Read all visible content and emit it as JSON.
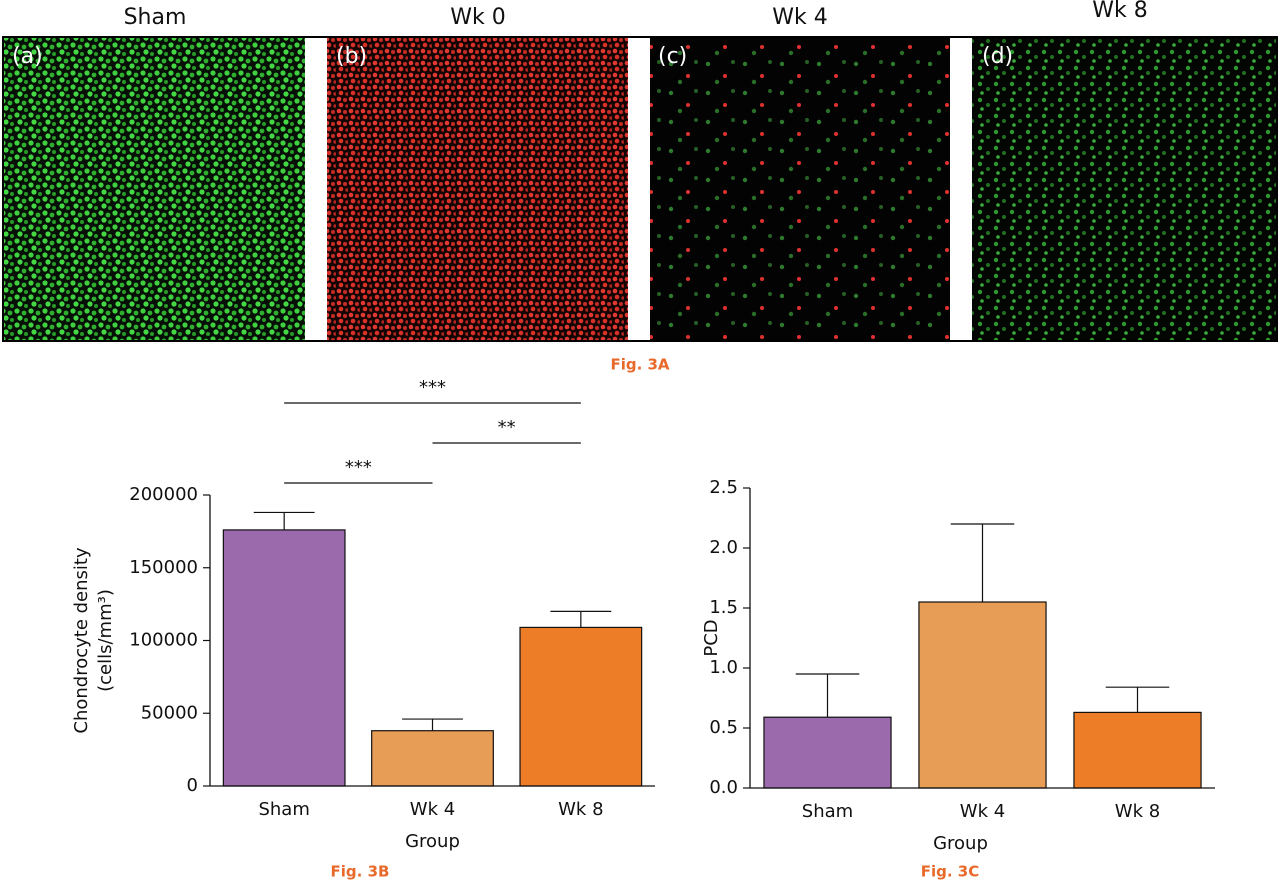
{
  "image_panel": {
    "titles": [
      "Sham",
      "Wk 0",
      "Wk 4",
      "Wk 8"
    ],
    "labels": [
      "(a)",
      "(b)",
      "(c)",
      "(d)"
    ],
    "caption": "Fig. 3A"
  },
  "chart_data": [
    {
      "type": "bar",
      "caption": "Fig. 3B",
      "ylabel": [
        "Chondrocyte density",
        "(cells/mm³)"
      ],
      "xlabel": "Group",
      "categories": [
        "Sham",
        "Wk 4",
        "Wk 8"
      ],
      "values": [
        176000,
        38000,
        109000
      ],
      "errors": [
        12000,
        8000,
        11000
      ],
      "colors": [
        "#9b6aac",
        "#e89d56",
        "#ee7d28"
      ],
      "ylim": [
        0,
        200000
      ],
      "yticks": [
        0,
        50000,
        100000,
        150000,
        200000
      ],
      "annotations": [
        {
          "label": "***",
          "between": [
            0,
            1
          ]
        },
        {
          "label": "**",
          "between": [
            1,
            2
          ]
        },
        {
          "label": "***",
          "between": [
            0,
            2
          ]
        }
      ]
    },
    {
      "type": "bar",
      "caption": "Fig. 3C",
      "ylabel": [
        "PCD"
      ],
      "xlabel": "Group",
      "categories": [
        "Sham",
        "Wk 4",
        "Wk 8"
      ],
      "values": [
        0.59,
        1.55,
        0.63
      ],
      "errors": [
        0.36,
        0.65,
        0.21
      ],
      "colors": [
        "#9b6aac",
        "#e89d56",
        "#ee7d28"
      ],
      "ylim": [
        0,
        2.5
      ],
      "yticks": [
        {
          "value": 0,
          "label": "0.0"
        },
        0.5,
        {
          "value": 1,
          "label": "1.0"
        },
        1.5,
        {
          "value": 2,
          "label": "2.0"
        },
        2.5
      ]
    }
  ]
}
